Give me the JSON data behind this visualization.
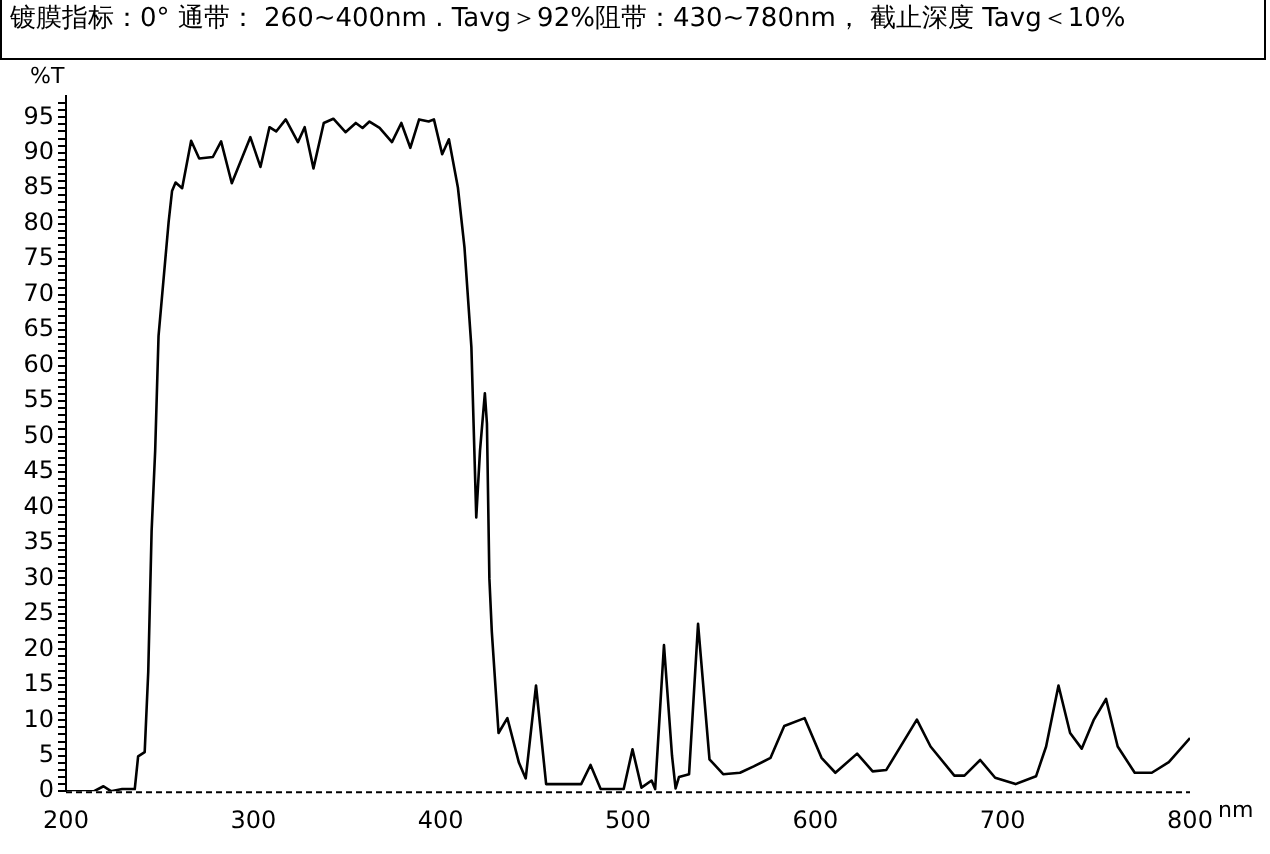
{
  "chart_data": {
    "type": "line",
    "title": "镀膜指标：0° 通带： 260~400nm . Tavg＞92%阻带：430~780nm， 截止深度 Tavg＜10%",
    "xlabel": "nm",
    "ylabel": "%T",
    "grid": false,
    "legend": false,
    "marker": "none",
    "line_style": "solid",
    "xlim": [
      200,
      800
    ],
    "xticks": [
      200,
      300,
      400,
      500,
      600,
      700,
      800
    ],
    "ylim": [
      0,
      98
    ],
    "yticks": [
      0,
      {
        "value": 1,
        "label": null
      },
      {
        "value": 2,
        "label": null
      },
      {
        "value": 3,
        "label": null
      },
      {
        "value": 4,
        "label": null
      },
      5,
      {
        "value": 6,
        "label": null
      },
      {
        "value": 7,
        "label": null
      },
      {
        "value": 8,
        "label": null
      },
      {
        "value": 9,
        "label": null
      },
      10,
      {
        "value": 11,
        "label": null
      },
      {
        "value": 12,
        "label": null
      },
      {
        "value": 13,
        "label": null
      },
      {
        "value": 14,
        "label": null
      },
      15,
      {
        "value": 16,
        "label": null
      },
      {
        "value": 17,
        "label": null
      },
      {
        "value": 18,
        "label": null
      },
      {
        "value": 19,
        "label": null
      },
      20,
      {
        "value": 21,
        "label": null
      },
      {
        "value": 22,
        "label": null
      },
      {
        "value": 23,
        "label": null
      },
      {
        "value": 24,
        "label": null
      },
      25,
      {
        "value": 26,
        "label": null
      },
      {
        "value": 27,
        "label": null
      },
      {
        "value": 28,
        "label": null
      },
      {
        "value": 29,
        "label": null
      },
      30,
      {
        "value": 31,
        "label": null
      },
      {
        "value": 32,
        "label": null
      },
      {
        "value": 33,
        "label": null
      },
      {
        "value": 34,
        "label": null
      },
      35,
      {
        "value": 36,
        "label": null
      },
      {
        "value": 37,
        "label": null
      },
      {
        "value": 38,
        "label": null
      },
      {
        "value": 39,
        "label": null
      },
      40,
      {
        "value": 41,
        "label": null
      },
      {
        "value": 42,
        "label": null
      },
      {
        "value": 43,
        "label": null
      },
      {
        "value": 44,
        "label": null
      },
      45,
      {
        "value": 46,
        "label": null
      },
      {
        "value": 47,
        "label": null
      },
      {
        "value": 48,
        "label": null
      },
      {
        "value": 49,
        "label": null
      },
      50,
      {
        "value": 51,
        "label": null
      },
      {
        "value": 52,
        "label": null
      },
      {
        "value": 53,
        "label": null
      },
      {
        "value": 54,
        "label": null
      },
      55,
      {
        "value": 56,
        "label": null
      },
      {
        "value": 57,
        "label": null
      },
      {
        "value": 58,
        "label": null
      },
      {
        "value": 59,
        "label": null
      },
      60,
      {
        "value": 61,
        "label": null
      },
      {
        "value": 62,
        "label": null
      },
      {
        "value": 63,
        "label": null
      },
      {
        "value": 64,
        "label": null
      },
      65,
      {
        "value": 66,
        "label": null
      },
      {
        "value": 67,
        "label": null
      },
      {
        "value": 68,
        "label": null
      },
      {
        "value": 69,
        "label": null
      },
      70,
      {
        "value": 71,
        "label": null
      },
      {
        "value": 72,
        "label": null
      },
      {
        "value": 73,
        "label": null
      },
      {
        "value": 74,
        "label": null
      },
      75,
      {
        "value": 76,
        "label": null
      },
      {
        "value": 77,
        "label": null
      },
      {
        "value": 78,
        "label": null
      },
      {
        "value": 79,
        "label": null
      },
      80,
      {
        "value": 81,
        "label": null
      },
      {
        "value": 82,
        "label": null
      },
      {
        "value": 83,
        "label": null
      },
      {
        "value": 84,
        "label": null
      },
      85,
      {
        "value": 86,
        "label": null
      },
      {
        "value": 87,
        "label": null
      },
      {
        "value": 88,
        "label": null
      },
      {
        "value": 89,
        "label": null
      },
      90,
      {
        "value": 91,
        "label": null
      },
      {
        "value": 92,
        "label": null
      },
      {
        "value": 93,
        "label": null
      },
      {
        "value": 94,
        "label": null
      },
      95,
      {
        "value": 96,
        "label": null
      },
      {
        "value": 97,
        "label": null
      }
    ],
    "series": [
      {
        "color": "#000000",
        "x": [
          200,
          215,
          220,
          224,
          230,
          236.7,
          238.5,
          242,
          243.9,
          245.7,
          247.6,
          249.4,
          254.8,
          256.6,
          258.5,
          262,
          266.8,
          271.1,
          278.4,
          282.8,
          288.5,
          298.4,
          303.8,
          308.6,
          312.2,
          317.3,
          323.8,
          327.4,
          332.1,
          337.6,
          342.7,
          349.2,
          354.7,
          358.3,
          362,
          367.4,
          374,
          379,
          383.8,
          388.5,
          393.6,
          396.4,
          400.8,
          404.4,
          409.2,
          412.7,
          416.4,
          419,
          421,
          423.6,
          424.7,
          426,
          427.3,
          430.9,
          435.6,
          441.8,
          445.4,
          450.9,
          456.3,
          461,
          475,
          480,
          485.4,
          497.7,
          502.4,
          507.2,
          512.6,
          514.5,
          519.2,
          523.5,
          525.4,
          527.2,
          532.6,
          537.4,
          543.5,
          550.8,
          559.8,
          567.1,
          576.1,
          583.4,
          594.3,
          603.3,
          610.7,
          622.3,
          630.6,
          637.9,
          654.2,
          661.5,
          674.2,
          679.6,
          688,
          696,
          706.9,
          717.8,
          723.2,
          729.8,
          736,
          742.2,
          748.7,
          755.2,
          761.4,
          770.5,
          779.6,
          788.7,
          800
        ],
        "values": [
          0,
          0,
          0.7,
          0,
          0.3,
          0.3,
          4.9,
          5.5,
          16.8,
          36.7,
          48,
          64.2,
          80.3,
          84.6,
          85.8,
          85,
          91.7,
          89.2,
          89.4,
          91.6,
          85.7,
          92.2,
          88,
          93.6,
          93,
          94.7,
          91.5,
          93.6,
          87.8,
          94.2,
          94.8,
          92.9,
          94.2,
          93.5,
          94.4,
          93.5,
          91.5,
          94.2,
          90.7,
          94.7,
          94.4,
          94.7,
          89.8,
          91.9,
          85.1,
          76.7,
          62.6,
          38.6,
          48,
          56.1,
          51.8,
          30,
          22.5,
          8.2,
          10.3,
          4,
          1.8,
          14.9,
          1,
          1,
          1,
          3.7,
          0.3,
          0.3,
          5.9,
          0.5,
          1.5,
          0.3,
          20.6,
          5,
          0.4,
          2,
          2.4,
          23.6,
          4.5,
          2.4,
          2.6,
          3.5,
          4.7,
          9.2,
          10.3,
          4.7,
          2.6,
          5.3,
          2.8,
          3,
          10.1,
          6.3,
          2.2,
          2.2,
          4.4,
          1.9,
          1,
          2.1,
          6.3,
          14.9,
          8.2,
          6,
          10.1,
          13,
          6.3,
          2.6,
          2.6,
          4.1,
          7.5
        ]
      }
    ]
  }
}
